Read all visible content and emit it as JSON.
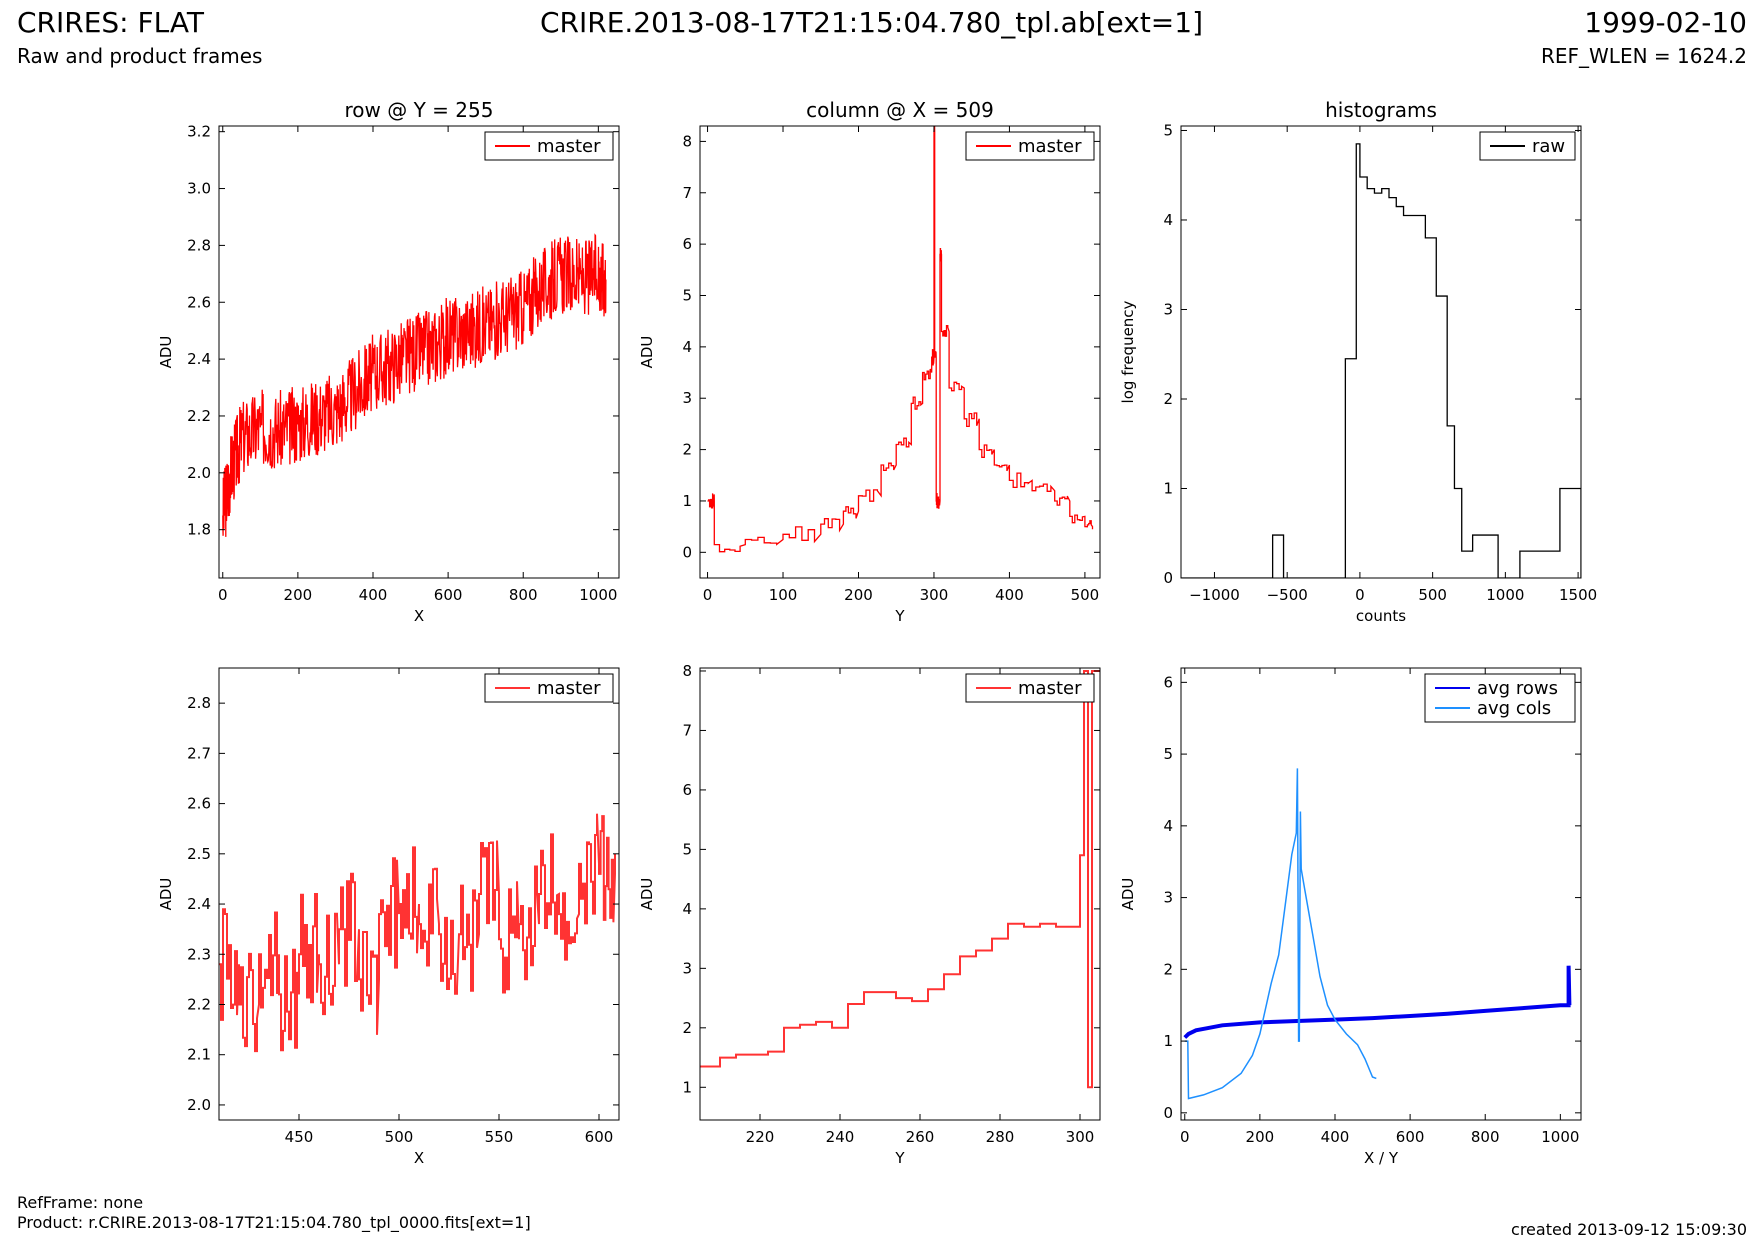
{
  "header": {
    "title_left": "CRIRES: FLAT",
    "subtitle_left": "Raw and product frames",
    "title_center": "CRIRE.2013-08-17T21:15:04.780_tpl.ab[ext=1]",
    "title_right": "1999-02-10",
    "subtitle_right": "REF_WLEN = 1624.2"
  },
  "footer": {
    "refframe": "RefFrame: none",
    "product": "Product: r.CRIRE.2013-08-17T21:15:04.780_tpl_0000.fits[ext=1]",
    "created": "created 2013-09-12 15:09:30"
  },
  "chart_data": [
    {
      "id": "row",
      "type": "line",
      "title": "row @ Y = 255",
      "xlabel": "X",
      "ylabel": "ADU",
      "xlim": [
        -10,
        1055
      ],
      "ylim": [
        1.63,
        3.22
      ],
      "xticks": [
        0,
        200,
        400,
        600,
        800,
        1000
      ],
      "yticks": [
        1.8,
        2.0,
        2.2,
        2.4,
        2.6,
        2.8,
        3.0,
        3.2
      ],
      "ytick_fmt": 1,
      "legend": {
        "entries": [
          {
            "label": "master",
            "color": "#ff0000"
          }
        ],
        "position": "top-right"
      },
      "series": [
        {
          "name": "master",
          "color": "#ff0000",
          "style": "line",
          "x": [
            0,
            20,
            50,
            100,
            150,
            200,
            250,
            300,
            350,
            400,
            450,
            500,
            550,
            600,
            650,
            700,
            750,
            800,
            850,
            900,
            950,
            1000,
            1020
          ],
          "y": [
            1.85,
            2.0,
            2.12,
            2.16,
            2.15,
            2.17,
            2.2,
            2.22,
            2.28,
            2.35,
            2.38,
            2.42,
            2.44,
            2.48,
            2.5,
            2.52,
            2.55,
            2.58,
            2.65,
            2.7,
            2.68,
            2.7,
            2.68
          ]
        }
      ]
    },
    {
      "id": "column",
      "type": "line",
      "title": "column @ X = 509",
      "xlabel": "Y",
      "ylabel": "ADU",
      "xlim": [
        -10,
        520
      ],
      "ylim": [
        -0.5,
        8.3
      ],
      "xticks": [
        0,
        100,
        200,
        300,
        400,
        500
      ],
      "yticks": [
        0,
        1,
        2,
        3,
        4,
        5,
        6,
        7,
        8
      ],
      "ytick_fmt": 0,
      "legend": {
        "entries": [
          {
            "label": "master",
            "color": "#ff0000"
          }
        ],
        "position": "top-right"
      },
      "series": [
        {
          "name": "master",
          "color": "#ff0000",
          "style": "step",
          "x": [
            0,
            8,
            9,
            50,
            100,
            150,
            180,
            200,
            230,
            250,
            270,
            285,
            297,
            300,
            301,
            303,
            305,
            308,
            310,
            320,
            340,
            360,
            380,
            400,
            430,
            460,
            480,
            500,
            510
          ],
          "y": [
            1.0,
            1.0,
            0.15,
            0.25,
            0.35,
            0.55,
            0.8,
            1.1,
            1.7,
            2.1,
            2.9,
            3.5,
            3.8,
            8.2,
            3.8,
            1.0,
            1.0,
            5.8,
            4.3,
            3.2,
            2.6,
            2.0,
            1.7,
            1.4,
            1.2,
            1.0,
            0.7,
            0.5,
            0.45
          ]
        }
      ]
    },
    {
      "id": "histograms",
      "type": "line",
      "title": "histograms",
      "xlabel": "counts",
      "ylabel": "log frequency",
      "xlim": [
        -1230,
        1520
      ],
      "ylim": [
        0,
        5.05
      ],
      "xticks": [
        -1000,
        -500,
        0,
        500,
        1000,
        1500
      ],
      "yticks": [
        0,
        1,
        2,
        3,
        4,
        5
      ],
      "ytick_fmt": 0,
      "legend": {
        "entries": [
          {
            "label": "raw",
            "color": "#000000"
          }
        ],
        "position": "top-right"
      },
      "series": [
        {
          "name": "raw",
          "color": "#000000",
          "style": "hist",
          "edges": [
            -1230,
            -600,
            -525,
            -100,
            -25,
            0,
            50,
            100,
            150,
            200,
            250,
            300,
            375,
            450,
            525,
            600,
            650,
            700,
            775,
            850,
            950,
            1100,
            1375,
            1425,
            1520
          ],
          "y": [
            0,
            0.48,
            0,
            2.45,
            4.85,
            4.48,
            4.35,
            4.3,
            4.35,
            4.25,
            4.15,
            4.05,
            4.05,
            3.8,
            3.15,
            1.7,
            1.0,
            0.3,
            0.48,
            0.48,
            0,
            0.3,
            1.0,
            1.0
          ]
        }
      ]
    },
    {
      "id": "row-zoom",
      "type": "line",
      "title": "",
      "xlabel": "X",
      "ylabel": "ADU",
      "xlim": [
        410,
        610
      ],
      "ylim": [
        1.97,
        2.87
      ],
      "xticks": [
        450,
        500,
        550,
        600
      ],
      "yticks": [
        2.0,
        2.1,
        2.2,
        2.3,
        2.4,
        2.5,
        2.6,
        2.7,
        2.8
      ],
      "ytick_fmt": 1,
      "legend": {
        "entries": [
          {
            "label": "master",
            "color": "#ff3333"
          }
        ],
        "position": "top-right"
      },
      "series": [
        {
          "name": "master",
          "color": "#ff3333",
          "style": "step",
          "x": [
            410,
            420,
            430,
            440,
            450,
            460,
            470,
            480,
            490,
            500,
            510,
            520,
            530,
            540,
            550,
            560,
            570,
            580,
            590,
            600,
            608
          ],
          "y": [
            2.28,
            2.2,
            2.3,
            2.22,
            2.3,
            2.28,
            2.35,
            2.25,
            2.38,
            2.4,
            2.36,
            2.34,
            2.34,
            2.42,
            2.33,
            2.36,
            2.42,
            2.38,
            2.48,
            2.46,
            2.5
          ]
        }
      ]
    },
    {
      "id": "column-zoom",
      "type": "line",
      "title": "",
      "xlabel": "Y",
      "ylabel": "ADU",
      "xlim": [
        205,
        305
      ],
      "ylim": [
        0.45,
        8.05
      ],
      "xticks": [
        220,
        240,
        260,
        280,
        300
      ],
      "yticks": [
        1,
        2,
        3,
        4,
        5,
        6,
        7,
        8
      ],
      "ytick_fmt": 0,
      "legend": {
        "entries": [
          {
            "label": "master",
            "color": "#ff3333"
          }
        ],
        "position": "top-right"
      },
      "series": [
        {
          "name": "master",
          "color": "#ff3333",
          "style": "step",
          "x": [
            205,
            210,
            214,
            218,
            222,
            226,
            230,
            234,
            238,
            242,
            246,
            250,
            254,
            258,
            262,
            266,
            270,
            274,
            278,
            282,
            286,
            290,
            294,
            298,
            300,
            301,
            302,
            303,
            305
          ],
          "y": [
            1.35,
            1.5,
            1.55,
            1.55,
            1.6,
            2.0,
            2.05,
            2.1,
            2.0,
            2.4,
            2.6,
            2.6,
            2.5,
            2.45,
            2.65,
            2.9,
            3.2,
            3.3,
            3.5,
            3.75,
            3.7,
            3.75,
            3.7,
            3.7,
            4.9,
            8.0,
            1.0,
            8.0,
            8.0
          ]
        }
      ]
    },
    {
      "id": "averages",
      "type": "line",
      "title": "",
      "xlabel": "X / Y",
      "ylabel": "ADU",
      "xlim": [
        -10,
        1055
      ],
      "ylim": [
        -0.1,
        6.2
      ],
      "xticks": [
        0,
        200,
        400,
        600,
        800,
        1000
      ],
      "yticks": [
        0,
        1,
        2,
        3,
        4,
        5,
        6
      ],
      "ytick_fmt": 0,
      "legend": {
        "entries": [
          {
            "label": "avg rows",
            "color": "#0000ee"
          },
          {
            "label": "avg cols",
            "color": "#1e90ff"
          }
        ],
        "position": "top-right"
      },
      "series": [
        {
          "name": "avg rows",
          "color": "#0000ee",
          "style": "line",
          "width": 4,
          "x": [
            0,
            10,
            30,
            60,
            100,
            200,
            300,
            400,
            500,
            600,
            700,
            800,
            900,
            1000,
            1022,
            1022,
            1024
          ],
          "y": [
            1.05,
            1.1,
            1.15,
            1.18,
            1.22,
            1.26,
            1.28,
            1.3,
            1.32,
            1.35,
            1.38,
            1.42,
            1.46,
            1.5,
            1.5,
            2.05,
            1.5
          ]
        },
        {
          "name": "avg cols",
          "color": "#1e90ff",
          "style": "line",
          "width": 1.5,
          "x": [
            0,
            8,
            10,
            50,
            100,
            150,
            180,
            200,
            230,
            250,
            270,
            285,
            297,
            300,
            301,
            303,
            305,
            308,
            310,
            320,
            340,
            360,
            380,
            400,
            430,
            460,
            480,
            500,
            510
          ],
          "y": [
            1.0,
            1.0,
            0.2,
            0.25,
            0.35,
            0.55,
            0.8,
            1.1,
            1.8,
            2.2,
            3.0,
            3.6,
            3.9,
            4.8,
            3.8,
            1.0,
            1.0,
            4.2,
            3.4,
            3.1,
            2.5,
            1.9,
            1.5,
            1.3,
            1.1,
            0.95,
            0.75,
            0.5,
            0.48
          ]
        }
      ]
    }
  ]
}
